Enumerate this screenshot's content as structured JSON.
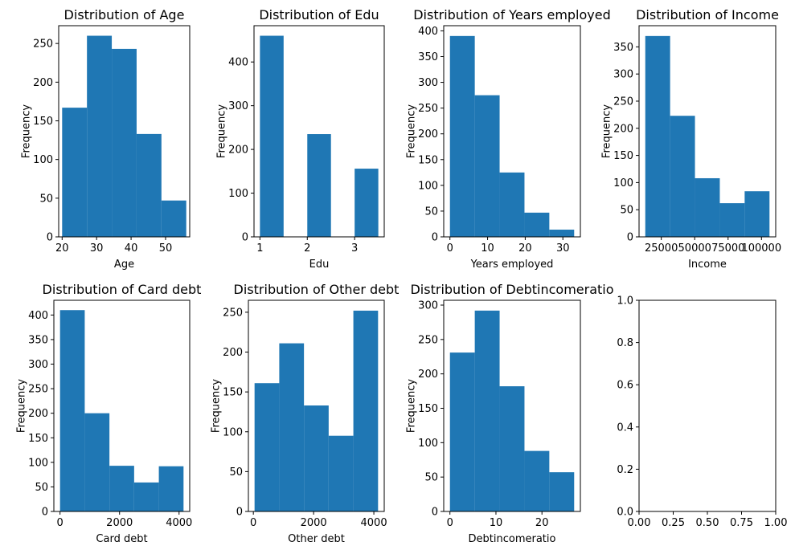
{
  "figure": {
    "background": "#ffffff",
    "bar_color": "#1f77b4"
  },
  "chart_data": [
    {
      "type": "bar",
      "title": "Distribution of Age",
      "xlabel": "Age",
      "ylabel": "Frequency",
      "bins": [
        [
          20,
          27.2
        ],
        [
          27.2,
          34.4
        ],
        [
          34.4,
          41.6
        ],
        [
          41.6,
          48.8
        ],
        [
          48.8,
          56
        ]
      ],
      "values": [
        167,
        260,
        243,
        133,
        47
      ],
      "xlim": [
        19,
        57
      ],
      "ylim": [
        0,
        273
      ],
      "xticks": [
        20,
        30,
        40,
        50
      ],
      "xtick_labels": [
        "20",
        "30",
        "40",
        "50"
      ],
      "yticks": [
        0,
        50,
        100,
        150,
        200,
        250
      ],
      "ytick_labels": [
        "0",
        "50",
        "100",
        "150",
        "200",
        "250"
      ]
    },
    {
      "type": "bar",
      "title": "Distribution of Edu",
      "xlabel": "Edu",
      "ylabel": "Frequency",
      "bins": [
        [
          1,
          1.5
        ],
        [
          1.5,
          2
        ],
        [
          2,
          2.5
        ],
        [
          2.5,
          3
        ],
        [
          3,
          3.5
        ]
      ],
      "values": [
        460,
        0,
        235,
        0,
        156
      ],
      "xlim": [
        0.875,
        3.625
      ],
      "ylim": [
        0,
        483
      ],
      "xticks": [
        1,
        2,
        3
      ],
      "xtick_labels": [
        "1",
        "2",
        "3"
      ],
      "yticks": [
        0,
        100,
        200,
        300,
        400
      ],
      "ytick_labels": [
        "0",
        "100",
        "200",
        "300",
        "400"
      ]
    },
    {
      "type": "bar",
      "title": "Distribution of Years employed",
      "xlabel": "Years employed",
      "ylabel": "Frequency",
      "bins": [
        [
          0,
          6.6
        ],
        [
          6.6,
          13.2
        ],
        [
          13.2,
          19.8
        ],
        [
          19.8,
          26.4
        ],
        [
          26.4,
          33
        ]
      ],
      "values": [
        390,
        275,
        125,
        47,
        14
      ],
      "xlim": [
        -1.65,
        34.65
      ],
      "ylim": [
        0,
        410
      ],
      "xticks": [
        0,
        10,
        20,
        30
      ],
      "xtick_labels": [
        "0",
        "10",
        "20",
        "30"
      ],
      "yticks": [
        0,
        50,
        100,
        150,
        200,
        250,
        300,
        350,
        400
      ],
      "ytick_labels": [
        "0",
        "50",
        "100",
        "150",
        "200",
        "250",
        "300",
        "350",
        "400"
      ]
    },
    {
      "type": "bar",
      "title": "Distribution of Income",
      "xlabel": "Income",
      "ylabel": "Frequency",
      "bins": [
        [
          13000,
          31600
        ],
        [
          31600,
          50200
        ],
        [
          50200,
          68800
        ],
        [
          68800,
          87400
        ],
        [
          87400,
          106000
        ]
      ],
      "values": [
        370,
        223,
        108,
        62,
        84
      ],
      "xlim": [
        8350,
        110650
      ],
      "ylim": [
        0,
        389
      ],
      "xticks": [
        25000,
        50000,
        75000,
        100000
      ],
      "xtick_labels": [
        "25000",
        "50000",
        "75000",
        "100000"
      ],
      "yticks": [
        0,
        50,
        100,
        150,
        200,
        250,
        300,
        350
      ],
      "ytick_labels": [
        "0",
        "50",
        "100",
        "150",
        "200",
        "250",
        "300",
        "350"
      ]
    },
    {
      "type": "bar",
      "title": "Distribution of Card debt",
      "xlabel": "Card debt",
      "ylabel": "Frequency",
      "bins": [
        [
          0,
          830
        ],
        [
          830,
          1660
        ],
        [
          1660,
          2490
        ],
        [
          2490,
          3320
        ],
        [
          3320,
          4150
        ]
      ],
      "values": [
        410,
        200,
        93,
        59,
        92
      ],
      "xlim": [
        -207.5,
        4357.5
      ],
      "ylim": [
        0,
        430
      ],
      "xticks": [
        0,
        2000,
        4000
      ],
      "xtick_labels": [
        "0",
        "2000",
        "4000"
      ],
      "yticks": [
        0,
        50,
        100,
        150,
        200,
        250,
        300,
        350,
        400
      ],
      "ytick_labels": [
        "0",
        "50",
        "100",
        "150",
        "200",
        "250",
        "300",
        "350",
        "400"
      ]
    },
    {
      "type": "bar",
      "title": "Distribution of Other debt",
      "xlabel": "Other debt",
      "ylabel": "Frequency",
      "bins": [
        [
          40,
          860
        ],
        [
          860,
          1680
        ],
        [
          1680,
          2500
        ],
        [
          2500,
          3320
        ],
        [
          3320,
          4140
        ]
      ],
      "values": [
        161,
        211,
        133,
        95,
        252
      ],
      "xlim": [
        -165,
        4345
      ],
      "ylim": [
        0,
        265
      ],
      "xticks": [
        0,
        2000,
        4000
      ],
      "xtick_labels": [
        "0",
        "2000",
        "4000"
      ],
      "yticks": [
        0,
        50,
        100,
        150,
        200,
        250
      ],
      "ytick_labels": [
        "0",
        "50",
        "100",
        "150",
        "200",
        "250"
      ]
    },
    {
      "type": "bar",
      "title": "Distribution of Debtincomeratio",
      "xlabel": "Debtincomeratio",
      "ylabel": "Frequency",
      "bins": [
        [
          0,
          5.4
        ],
        [
          5.4,
          10.8
        ],
        [
          10.8,
          16.2
        ],
        [
          16.2,
          21.6
        ],
        [
          21.6,
          27
        ]
      ],
      "values": [
        231,
        292,
        182,
        88,
        57
      ],
      "xlim": [
        -1.35,
        28.35
      ],
      "ylim": [
        0,
        307
      ],
      "xticks": [
        0,
        10,
        20
      ],
      "xtick_labels": [
        "0",
        "10",
        "20"
      ],
      "yticks": [
        0,
        50,
        100,
        150,
        200,
        250,
        300
      ],
      "ytick_labels": [
        "0",
        "50",
        "100",
        "150",
        "200",
        "250",
        "300"
      ]
    },
    {
      "type": "empty",
      "title": "",
      "xlabel": "",
      "ylabel": "",
      "bins": [],
      "values": [],
      "xlim": [
        0,
        1
      ],
      "ylim": [
        0,
        1
      ],
      "xticks": [
        0,
        0.25,
        0.5,
        0.75,
        1
      ],
      "xtick_labels": [
        "0.00",
        "0.25",
        "0.50",
        "0.75",
        "1.00"
      ],
      "yticks": [
        0,
        0.2,
        0.4,
        0.6,
        0.8,
        1
      ],
      "ytick_labels": [
        "0.0",
        "0.2",
        "0.4",
        "0.6",
        "0.8",
        "1.0"
      ]
    }
  ]
}
